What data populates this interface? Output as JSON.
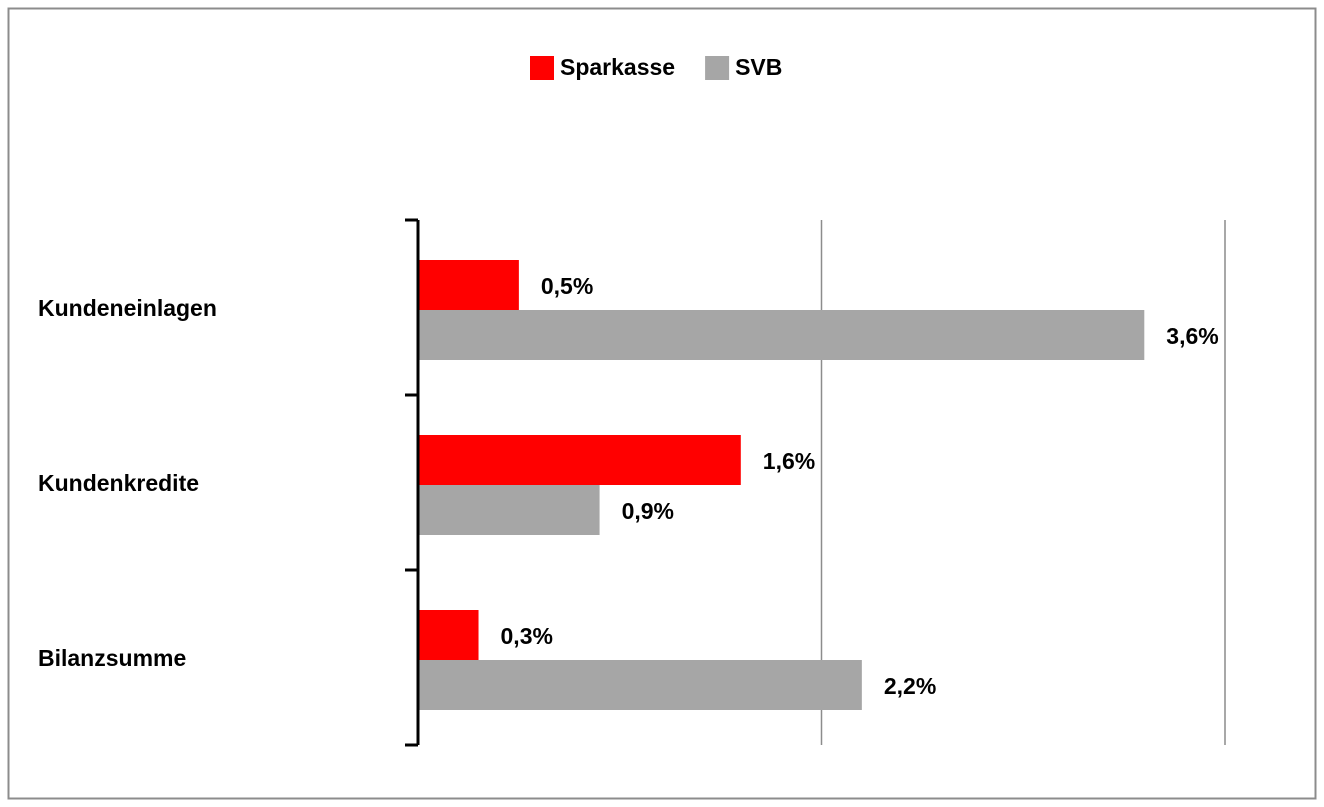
{
  "chart_data": {
    "type": "bar",
    "orientation": "horizontal",
    "categories": [
      "Kundeneinlagen",
      "Kundenkredite",
      "Bilanzsumme"
    ],
    "series": [
      {
        "name": "Sparkasse",
        "color": "#ff0000",
        "values": [
          0.5,
          1.6,
          0.3
        ],
        "value_labels": [
          "0,5%",
          "1,6%",
          "0,3%"
        ]
      },
      {
        "name": "SVB",
        "color": "#a6a6a6",
        "values": [
          3.6,
          0.9,
          2.2
        ],
        "value_labels": [
          "3,6%",
          "0,9%",
          "2,2%"
        ]
      }
    ],
    "xlim": [
      0,
      4
    ],
    "xticks": [
      0,
      2,
      4
    ],
    "grid": true,
    "legend": "top"
  }
}
